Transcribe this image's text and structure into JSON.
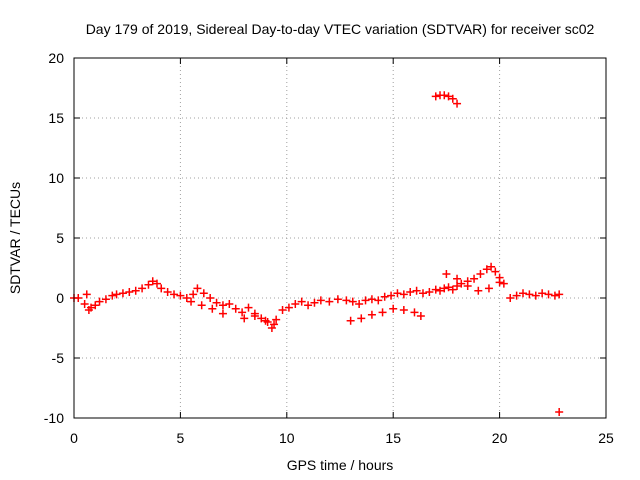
{
  "chart_data": {
    "type": "scatter",
    "title": "Day 179 of 2019, Sidereal Day-to-day VTEC variation (SDTVAR) for receiver sc02",
    "xlabel": "GPS time / hours",
    "ylabel": "SDTVAR / TECUs",
    "xlim": [
      0,
      25
    ],
    "ylim": [
      -10,
      20
    ],
    "xticks": [
      0,
      5,
      10,
      15,
      20,
      25
    ],
    "yticks": [
      -10,
      -5,
      0,
      5,
      10,
      15,
      20
    ],
    "grid": true,
    "marker": "+",
    "color": "#ff0000",
    "series": [
      {
        "name": "SDTVAR",
        "x": [
          0.0,
          0.2,
          0.5,
          0.6,
          0.7,
          0.8,
          1.0,
          1.2,
          1.5,
          1.8,
          2.0,
          2.3,
          2.6,
          2.9,
          3.2,
          3.5,
          3.7,
          3.9,
          4.1,
          4.4,
          4.7,
          5.0,
          5.3,
          5.6,
          5.8,
          6.1,
          6.4,
          6.7,
          7.0,
          7.3,
          7.6,
          7.9,
          8.2,
          8.5,
          8.8,
          9.1,
          9.3,
          9.5,
          9.8,
          10.1,
          10.4,
          10.7,
          11.0,
          11.3,
          11.6,
          12.0,
          12.4,
          12.8,
          13.1,
          13.4,
          13.7,
          14.0,
          14.3,
          14.6,
          14.9,
          15.2,
          15.5,
          15.8,
          16.1,
          16.4,
          16.7,
          17.0,
          17.2,
          17.4,
          17.6,
          17.8,
          18.0,
          18.2,
          18.5,
          18.8,
          19.1,
          19.4,
          19.6,
          19.8,
          20.0,
          20.2,
          20.5,
          20.8,
          21.1,
          21.4,
          21.7,
          22.0,
          22.3,
          22.6,
          22.8,
          13.0,
          13.5,
          14.0,
          14.5,
          15.0,
          15.5,
          16.0,
          16.3,
          8.0,
          8.5,
          9.0,
          9.4,
          5.5,
          6.0,
          6.5,
          7.0,
          17.0,
          17.2,
          17.4,
          17.6,
          17.8,
          18.0,
          17.5,
          18.0,
          18.5,
          19.0,
          19.5,
          20.0,
          22.8
        ],
        "y": [
          0.0,
          0.0,
          -0.5,
          0.3,
          -1.0,
          -0.8,
          -0.6,
          -0.3,
          -0.1,
          0.2,
          0.3,
          0.4,
          0.5,
          0.6,
          0.8,
          1.1,
          1.4,
          1.2,
          0.8,
          0.5,
          0.3,
          0.2,
          0.0,
          0.3,
          0.8,
          0.4,
          0.0,
          -0.4,
          -0.6,
          -0.5,
          -0.9,
          -1.2,
          -0.8,
          -1.3,
          -1.7,
          -2.0,
          -2.5,
          -1.8,
          -1.0,
          -0.8,
          -0.5,
          -0.3,
          -0.6,
          -0.4,
          -0.2,
          -0.3,
          -0.1,
          -0.2,
          -0.3,
          -0.5,
          -0.2,
          -0.1,
          -0.2,
          0.1,
          0.2,
          0.4,
          0.3,
          0.5,
          0.6,
          0.4,
          0.5,
          0.7,
          0.6,
          0.8,
          0.9,
          0.7,
          1.0,
          1.2,
          1.4,
          1.6,
          2.0,
          2.4,
          2.6,
          2.2,
          1.7,
          1.2,
          0.0,
          0.2,
          0.4,
          0.3,
          0.2,
          0.4,
          0.3,
          0.2,
          0.3,
          -1.9,
          -1.7,
          -1.4,
          -1.2,
          -0.9,
          -1.0,
          -1.2,
          -1.5,
          -1.7,
          -1.5,
          -1.9,
          -2.2,
          -0.3,
          -0.6,
          -0.9,
          -1.3,
          16.8,
          16.9,
          16.9,
          16.8,
          16.6,
          16.2,
          2.0,
          1.6,
          1.0,
          0.6,
          0.8,
          1.3,
          -9.5
        ]
      }
    ]
  }
}
